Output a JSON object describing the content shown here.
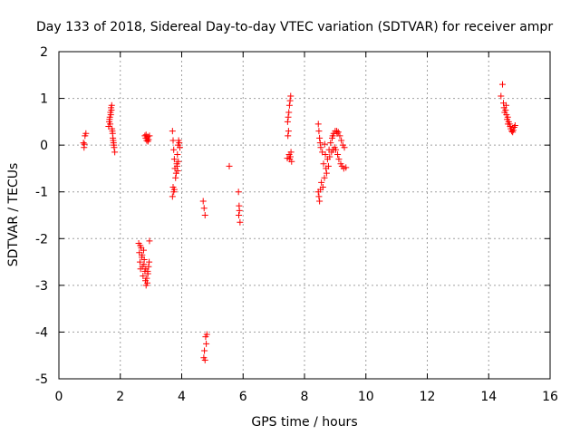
{
  "chart_data": {
    "type": "scatter",
    "title": "Day 133 of 2018, Sidereal Day-to-day VTEC variation (SDTVAR) for receiver ampr",
    "xlabel": "GPS time / hours",
    "ylabel": "SDTVAR / TECUs",
    "xlim": [
      0,
      16
    ],
    "ylim": [
      -5,
      2
    ],
    "xticks": [
      0,
      2,
      4,
      6,
      8,
      10,
      12,
      14,
      16
    ],
    "yticks": [
      -5,
      -4,
      -3,
      -2,
      -1,
      0,
      1,
      2
    ],
    "grid": true,
    "marker": "+",
    "color": "#ff0000",
    "series": [
      {
        "points": [
          [
            0.8,
            0.05
          ],
          [
            0.82,
            -0.05
          ],
          [
            0.85,
            0.2
          ],
          [
            0.88,
            0.25
          ],
          [
            0.83,
            0.02
          ],
          [
            1.62,
            0.4
          ],
          [
            1.64,
            0.5
          ],
          [
            1.66,
            0.6
          ],
          [
            1.68,
            0.7
          ],
          [
            1.7,
            0.8
          ],
          [
            1.72,
            0.85
          ],
          [
            1.65,
            0.55
          ],
          [
            1.67,
            0.45
          ],
          [
            1.69,
            0.65
          ],
          [
            1.71,
            0.75
          ],
          [
            1.74,
            0.3
          ],
          [
            1.76,
            0.15
          ],
          [
            1.78,
            0.05
          ],
          [
            1.8,
            -0.05
          ],
          [
            1.82,
            -0.15
          ],
          [
            1.75,
            0.25
          ],
          [
            1.77,
            0.1
          ],
          [
            1.79,
            0.0
          ],
          [
            1.73,
            0.35
          ],
          [
            2.8,
            0.2
          ],
          [
            2.83,
            0.15
          ],
          [
            2.86,
            0.1
          ],
          [
            2.89,
            0.18
          ],
          [
            2.92,
            0.12
          ],
          [
            2.95,
            0.2
          ],
          [
            2.84,
            0.22
          ],
          [
            2.9,
            0.08
          ],
          [
            2.6,
            -2.1
          ],
          [
            2.62,
            -2.3
          ],
          [
            2.64,
            -2.5
          ],
          [
            2.66,
            -2.65
          ],
          [
            2.68,
            -2.2
          ],
          [
            2.7,
            -2.4
          ],
          [
            2.72,
            -2.6
          ],
          [
            2.74,
            -2.8
          ],
          [
            2.76,
            -2.25
          ],
          [
            2.78,
            -2.45
          ],
          [
            2.8,
            -2.7
          ],
          [
            2.82,
            -2.9
          ],
          [
            2.84,
            -3.0
          ],
          [
            2.86,
            -2.85
          ],
          [
            2.88,
            -2.95
          ],
          [
            2.9,
            -2.75
          ],
          [
            2.92,
            -2.6
          ],
          [
            2.94,
            -2.5
          ],
          [
            2.95,
            -2.05
          ],
          [
            2.65,
            -2.15
          ],
          [
            2.71,
            -2.35
          ],
          [
            2.77,
            -2.55
          ],
          [
            2.83,
            -2.65
          ],
          [
            2.89,
            -2.7
          ],
          [
            3.7,
            0.3
          ],
          [
            3.72,
            0.1
          ],
          [
            3.74,
            -0.1
          ],
          [
            3.76,
            -0.3
          ],
          [
            3.78,
            -0.5
          ],
          [
            3.8,
            -0.7
          ],
          [
            3.72,
            -0.9
          ],
          [
            3.74,
            -1.0
          ],
          [
            3.7,
            -1.1
          ],
          [
            3.76,
            -0.95
          ],
          [
            3.82,
            -0.6
          ],
          [
            3.84,
            -0.4
          ],
          [
            3.86,
            -0.2
          ],
          [
            3.88,
            0.0
          ],
          [
            3.9,
            0.1
          ],
          [
            3.92,
            0.05
          ],
          [
            3.94,
            -0.05
          ],
          [
            3.85,
            -0.45
          ],
          [
            3.87,
            -0.55
          ],
          [
            3.89,
            -0.35
          ],
          [
            4.7,
            -1.2
          ],
          [
            4.73,
            -1.35
          ],
          [
            4.76,
            -1.5
          ],
          [
            4.78,
            -4.1
          ],
          [
            4.8,
            -4.25
          ],
          [
            4.74,
            -4.4
          ],
          [
            4.72,
            -4.55
          ],
          [
            4.76,
            -4.6
          ],
          [
            4.82,
            -4.05
          ],
          [
            5.55,
            -0.45
          ],
          [
            5.85,
            -1.0
          ],
          [
            5.87,
            -1.3
          ],
          [
            5.88,
            -1.4
          ],
          [
            5.9,
            -1.65
          ],
          [
            5.86,
            -1.5
          ],
          [
            7.45,
            0.5
          ],
          [
            7.47,
            0.6
          ],
          [
            7.49,
            0.7
          ],
          [
            7.51,
            0.85
          ],
          [
            7.53,
            0.95
          ],
          [
            7.55,
            1.05
          ],
          [
            7.48,
            0.3
          ],
          [
            7.46,
            0.2
          ],
          [
            7.5,
            -0.2
          ],
          [
            7.52,
            -0.3
          ],
          [
            7.54,
            -0.25
          ],
          [
            7.56,
            -0.15
          ],
          [
            7.58,
            -0.35
          ],
          [
            7.44,
            -0.28
          ],
          [
            8.45,
            0.45
          ],
          [
            8.47,
            0.3
          ],
          [
            8.49,
            0.15
          ],
          [
            8.51,
            0.05
          ],
          [
            8.53,
            -0.05
          ],
          [
            8.45,
            -1.0
          ],
          [
            8.47,
            -1.1
          ],
          [
            8.49,
            -1.2
          ],
          [
            8.52,
            -0.95
          ],
          [
            8.55,
            -0.8
          ],
          [
            8.6,
            -0.9
          ],
          [
            8.65,
            -0.7
          ],
          [
            8.7,
            -0.5
          ],
          [
            8.75,
            -0.3
          ],
          [
            8.8,
            -0.1
          ],
          [
            8.85,
            0.05
          ],
          [
            8.9,
            0.15
          ],
          [
            8.95,
            0.25
          ],
          [
            9.0,
            0.3
          ],
          [
            9.05,
            0.3
          ],
          [
            9.1,
            0.28
          ],
          [
            9.15,
            0.2
          ],
          [
            9.2,
            0.1
          ],
          [
            9.25,
            0.0
          ],
          [
            9.3,
            -0.05
          ],
          [
            8.62,
            -0.4
          ],
          [
            8.68,
            -0.2
          ],
          [
            8.72,
            -0.6
          ],
          [
            8.78,
            -0.45
          ],
          [
            8.82,
            -0.25
          ],
          [
            8.88,
            -0.15
          ],
          [
            8.93,
            -0.1
          ],
          [
            8.98,
            -0.05
          ],
          [
            9.02,
            -0.1
          ],
          [
            9.08,
            -0.2
          ],
          [
            9.12,
            -0.3
          ],
          [
            9.18,
            -0.4
          ],
          [
            9.22,
            -0.45
          ],
          [
            9.28,
            -0.5
          ],
          [
            9.35,
            -0.48
          ],
          [
            8.58,
            -0.15
          ],
          [
            8.66,
            0.02
          ],
          [
            8.92,
            0.2
          ],
          [
            9.06,
            0.25
          ],
          [
            14.4,
            1.05
          ],
          [
            14.45,
            1.3
          ],
          [
            14.48,
            0.9
          ],
          [
            14.5,
            0.8
          ],
          [
            14.52,
            0.7
          ],
          [
            14.55,
            0.75
          ],
          [
            14.58,
            0.65
          ],
          [
            14.6,
            0.55
          ],
          [
            14.62,
            0.6
          ],
          [
            14.65,
            0.5
          ],
          [
            14.68,
            0.45
          ],
          [
            14.7,
            0.4
          ],
          [
            14.72,
            0.35
          ],
          [
            14.75,
            0.3
          ],
          [
            14.78,
            0.28
          ],
          [
            14.8,
            0.32
          ],
          [
            14.83,
            0.38
          ],
          [
            14.86,
            0.42
          ],
          [
            14.57,
            0.85
          ],
          [
            14.63,
            0.45
          ]
        ]
      }
    ]
  }
}
